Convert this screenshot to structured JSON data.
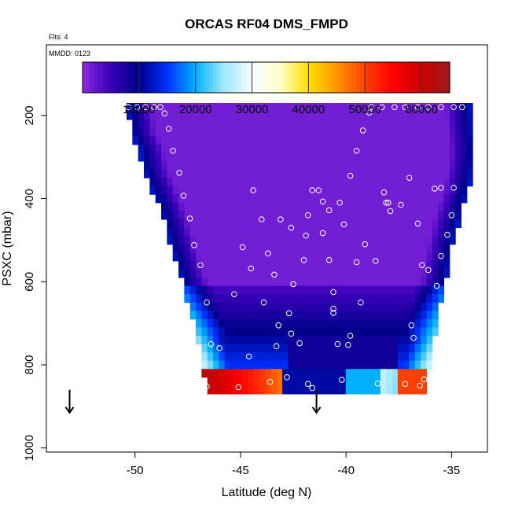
{
  "chart_data": {
    "type": "heatmap",
    "title": "ORCAS RF04 DMS_FMPD",
    "flts_label": "Flts: 4",
    "mmdd_label": "MMDD: 0123",
    "xlabel": "Latitude (deg N)",
    "ylabel": "PSXC (mbar)",
    "xlim": [
      -54.2,
      -33.3
    ],
    "ylim": [
      1010,
      30
    ],
    "x_ticks": [
      -50,
      -45,
      -40,
      -35
    ],
    "x_tick_labels": [
      "-50",
      "-45",
      "-40",
      "-35"
    ],
    "y_ticks": [
      200,
      400,
      600,
      800,
      1000
    ],
    "y_tick_labels": [
      "200",
      "400",
      "600",
      "800",
      "1000"
    ],
    "colorbar": {
      "min": 0,
      "max": 65000,
      "ticks": [
        10000,
        20000,
        30000,
        40000,
        50000,
        60000
      ],
      "tick_labels": [
        "10000",
        "20000",
        "30000",
        "40000",
        "50000",
        "60000"
      ],
      "stops": [
        {
          "v": 0,
          "c": "#8a2be2"
        },
        {
          "v": 5000,
          "c": "#3a00b8"
        },
        {
          "v": 10000,
          "c": "#00008b"
        },
        {
          "v": 15000,
          "c": "#0030ff"
        },
        {
          "v": 20000,
          "c": "#00b0ff"
        },
        {
          "v": 25000,
          "c": "#a0e8ff"
        },
        {
          "v": 30000,
          "c": "#f4fcff"
        },
        {
          "v": 35000,
          "c": "#ffffc8"
        },
        {
          "v": 40000,
          "c": "#ffe000"
        },
        {
          "v": 45000,
          "c": "#ff9500"
        },
        {
          "v": 50000,
          "c": "#ff4000"
        },
        {
          "v": 55000,
          "c": "#ff0000"
        },
        {
          "v": 60000,
          "c": "#cc0000"
        },
        {
          "v": 65000,
          "c": "#9b1a1a"
        }
      ]
    },
    "field_x_range": [
      -50.4,
      -34.0
    ],
    "field_y_range": [
      170,
      870
    ],
    "grid_steps": [
      60,
      35
    ],
    "edge_boundary": {
      "left": [
        [
          170,
          -50.4
        ],
        [
          240,
          -50.2
        ],
        [
          280,
          -49.8
        ],
        [
          330,
          -49.6
        ],
        [
          380,
          -49.2
        ],
        [
          430,
          -48.8
        ],
        [
          480,
          -48.5
        ],
        [
          530,
          -48.2
        ],
        [
          580,
          -47.9
        ],
        [
          630,
          -47.6
        ],
        [
          680,
          -47.3
        ],
        [
          740,
          -47.0
        ],
        [
          800,
          -46.8
        ],
        [
          870,
          -46.6
        ]
      ],
      "right": [
        [
          170,
          -34.1
        ],
        [
          240,
          -34.0
        ],
        [
          280,
          -33.9
        ],
        [
          330,
          -34.0
        ],
        [
          380,
          -34.2
        ],
        [
          430,
          -34.5
        ],
        [
          480,
          -34.8
        ],
        [
          530,
          -35.0
        ],
        [
          580,
          -35.2
        ],
        [
          630,
          -35.4
        ],
        [
          680,
          -35.6
        ],
        [
          740,
          -35.8
        ],
        [
          800,
          -36.0
        ],
        [
          870,
          -36.2
        ]
      ]
    },
    "observations": [
      [
        -50.3,
        180
      ],
      [
        -49.9,
        180
      ],
      [
        -49.5,
        180
      ],
      [
        -49.1,
        180
      ],
      [
        -48.8,
        180
      ],
      [
        -48.6,
        195
      ],
      [
        -48.4,
        232
      ],
      [
        -48.2,
        285
      ],
      [
        -47.9,
        338
      ],
      [
        -47.7,
        393
      ],
      [
        -47.4,
        448
      ],
      [
        -47.2,
        512
      ],
      [
        -46.9,
        560
      ],
      [
        -46.6,
        650
      ],
      [
        -46.4,
        750
      ],
      [
        -46.0,
        760
      ],
      [
        -45.3,
        630
      ],
      [
        -44.9,
        517
      ],
      [
        -44.5,
        568
      ],
      [
        -44.0,
        450
      ],
      [
        -43.7,
        532
      ],
      [
        -43.4,
        583
      ],
      [
        -43.9,
        650
      ],
      [
        -44.4,
        380
      ],
      [
        -43.1,
        450
      ],
      [
        -43.3,
        755
      ],
      [
        -42.8,
        830
      ],
      [
        -42.6,
        725
      ],
      [
        -42.6,
        470
      ],
      [
        -42.7,
        676
      ],
      [
        -42.5,
        606
      ],
      [
        -42.2,
        748
      ],
      [
        -42.0,
        548
      ],
      [
        -41.9,
        489
      ],
      [
        -41.8,
        440
      ],
      [
        -41.6,
        380
      ],
      [
        -41.3,
        380
      ],
      [
        -41.1,
        407
      ],
      [
        -40.8,
        428
      ],
      [
        -41.1,
        483
      ],
      [
        -40.8,
        548
      ],
      [
        -40.6,
        625
      ],
      [
        -40.6,
        665
      ],
      [
        -40.6,
        675
      ],
      [
        -40.4,
        750
      ],
      [
        -40.3,
        410
      ],
      [
        -39.9,
        752
      ],
      [
        -40.1,
        462
      ],
      [
        -39.8,
        345
      ],
      [
        -39.5,
        285
      ],
      [
        -39.2,
        236
      ],
      [
        -38.9,
        193
      ],
      [
        -38.8,
        180
      ],
      [
        -38.3,
        180
      ],
      [
        -37.7,
        180
      ],
      [
        -37.2,
        180
      ],
      [
        -36.6,
        180
      ],
      [
        -36.1,
        180
      ],
      [
        -35.5,
        180
      ],
      [
        -34.9,
        180
      ],
      [
        -34.5,
        180
      ],
      [
        -39.5,
        553
      ],
      [
        -39.8,
        730
      ],
      [
        -39.3,
        650
      ],
      [
        -39.1,
        510
      ],
      [
        -38.6,
        550
      ],
      [
        -38.2,
        385
      ],
      [
        -38.1,
        410
      ],
      [
        -37.9,
        430
      ],
      [
        -37.4,
        415
      ],
      [
        -37.0,
        350
      ],
      [
        -36.6,
        460
      ],
      [
        -36.4,
        560
      ],
      [
        -36.1,
        572
      ],
      [
        -35.7,
        610
      ],
      [
        -35.5,
        538
      ],
      [
        -35.0,
        440
      ],
      [
        -35.2,
        487
      ],
      [
        -35.8,
        376
      ],
      [
        -35.5,
        374
      ],
      [
        -34.9,
        374
      ],
      [
        -36.8,
        735
      ],
      [
        -35.3,
        680
      ],
      [
        -38.0,
        410
      ],
      [
        -36.3,
        835
      ],
      [
        -34.8,
        832
      ],
      [
        -36.5,
        850
      ],
      [
        -38.5,
        845
      ],
      [
        -40.2,
        836
      ],
      [
        -41.8,
        846
      ],
      [
        -43.6,
        841
      ],
      [
        -45.1,
        854
      ],
      [
        -46.6,
        852
      ],
      [
        -44.6,
        780
      ],
      [
        -41.6,
        856
      ],
      [
        -37.2,
        846
      ],
      [
        -35.8,
        790
      ],
      [
        -35.6,
        760
      ],
      [
        -36.9,
        705
      ],
      [
        -43.2,
        705
      ]
    ],
    "arrows": [
      {
        "x": -53.1,
        "y": 890
      },
      {
        "x": -41.4,
        "y": 890
      }
    ]
  },
  "style": {
    "axis_color": "#000000",
    "marker_color": "#ffffff"
  }
}
